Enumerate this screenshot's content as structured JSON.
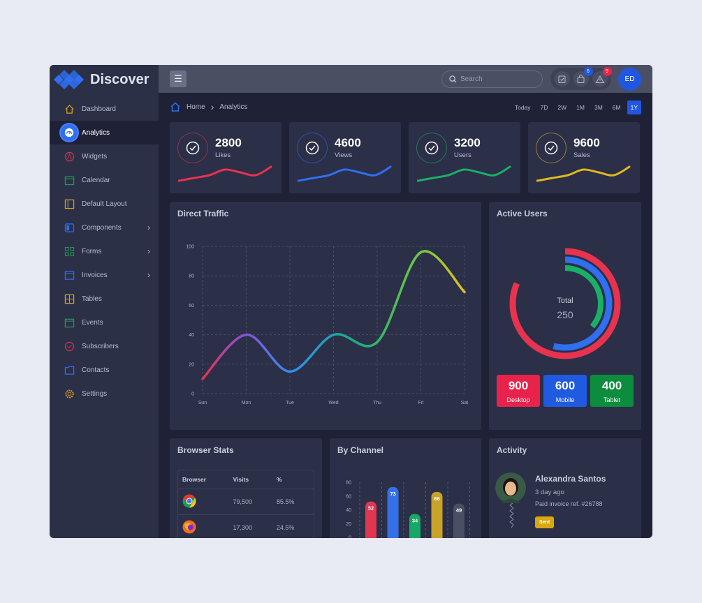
{
  "brand": "Discover",
  "sidebar": {
    "items": [
      {
        "label": "Dashboard",
        "icon": "home-icon",
        "color": "#e0a020"
      },
      {
        "label": "Analytics",
        "icon": "gauge-icon",
        "color": "#2f6ff0",
        "active": true
      },
      {
        "label": "Widgets",
        "icon": "compass-icon",
        "color": "#e0304a"
      },
      {
        "label": "Calendar",
        "icon": "calendar-icon",
        "color": "#20a050"
      },
      {
        "label": "Default Layout",
        "icon": "layout-icon",
        "color": "#e0a020"
      },
      {
        "label": "Components",
        "icon": "toggle-icon",
        "color": "#2f6ff0",
        "chevron": true
      },
      {
        "label": "Forms",
        "icon": "grid-icon",
        "color": "#20a050",
        "chevron": true
      },
      {
        "label": "Invoices",
        "icon": "window-icon",
        "color": "#2f6ff0",
        "chevron": true
      },
      {
        "label": "Tables",
        "icon": "table-icon",
        "color": "#e0a020"
      },
      {
        "label": "Events",
        "icon": "calendar-icon",
        "color": "#20a050"
      },
      {
        "label": "Subscribers",
        "icon": "check-circle-icon",
        "color": "#e0304a"
      },
      {
        "label": "Contacts",
        "icon": "folder-icon",
        "color": "#2f6ff0"
      },
      {
        "label": "Settings",
        "icon": "gear-icon",
        "color": "#e0a020"
      }
    ]
  },
  "topbar": {
    "search_placeholder": "Search",
    "badges": {
      "cart": "6",
      "alert": "9"
    },
    "avatar": "ED"
  },
  "breadcrumb": {
    "home": "Home",
    "current": "Analytics"
  },
  "ranges": [
    "Today",
    "7D",
    "2W",
    "1M",
    "3M",
    "6M",
    "1Y"
  ],
  "active_range": "1Y",
  "stats": [
    {
      "value": "2800",
      "label": "Likes",
      "color": "#e8334f",
      "spark": [
        2,
        3,
        4,
        6,
        5,
        4,
        7
      ]
    },
    {
      "value": "4600",
      "label": "Views",
      "color": "#2f6ff0",
      "spark": [
        2,
        3,
        4,
        6,
        5,
        4,
        7
      ]
    },
    {
      "value": "3200",
      "label": "Users",
      "color": "#18b067",
      "spark": [
        2,
        3,
        4,
        6,
        5,
        4,
        7
      ]
    },
    {
      "value": "9600",
      "label": "Sales",
      "color": "#e0b820",
      "spark": [
        2,
        3,
        4,
        6,
        5,
        4,
        7
      ]
    }
  ],
  "traffic": {
    "title": "Direct Traffic",
    "chart_data": {
      "type": "line",
      "categories": [
        "Sun",
        "Mon",
        "Tue",
        "Wed",
        "Thu",
        "Fri",
        "Sat"
      ],
      "values": [
        10,
        40,
        15,
        40,
        35,
        96,
        69
      ],
      "ylim": [
        0,
        100
      ],
      "yticks": [
        0,
        20,
        40,
        60,
        80,
        100
      ],
      "grid": true
    }
  },
  "active_users": {
    "title": "Active Users",
    "total_label": "Total",
    "total": "250",
    "chart_data": {
      "type": "radial",
      "series": [
        {
          "name": "Desktop",
          "value": 900,
          "color": "#e8334f"
        },
        {
          "name": "Mobile",
          "value": 600,
          "color": "#2f6ff0"
        },
        {
          "name": "Tablet",
          "value": 400,
          "color": "#18b067"
        }
      ]
    },
    "devices": [
      {
        "value": "900",
        "label": "Desktop",
        "color": "#e8224a"
      },
      {
        "value": "600",
        "label": "Mobile",
        "color": "#1f5ae0"
      },
      {
        "value": "400",
        "label": "Tablet",
        "color": "#0c8c3c"
      }
    ]
  },
  "browser_stats": {
    "title": "Browser Stats",
    "headers": [
      "Browser",
      "Visits",
      "%"
    ],
    "rows": [
      {
        "icon": "chrome-icon",
        "visits": "79,500",
        "pct": "85.5%"
      },
      {
        "icon": "firefox-icon",
        "visits": "17,300",
        "pct": "24.5%"
      }
    ]
  },
  "channel": {
    "title": "By Channel",
    "chart_data": {
      "type": "bar",
      "values": [
        52,
        73,
        34,
        66,
        49
      ],
      "colors": [
        "#e0364f",
        "#3570e8",
        "#16a866",
        "#c9a22a",
        "#4a4f63"
      ],
      "ylim": [
        0,
        80
      ],
      "yticks": [
        0,
        20,
        40,
        60,
        80
      ]
    }
  },
  "activity": {
    "title": "Activity",
    "name": "Alexandra Santos",
    "time": "3 day ago",
    "text": "Paid invoice ref. #26788",
    "tag": "Sent"
  }
}
